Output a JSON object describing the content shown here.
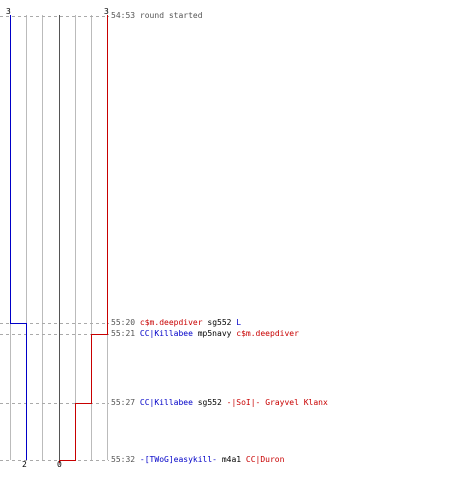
{
  "colors": {
    "team_blue": "#0000c8",
    "team_red": "#c80000",
    "weapon": "#000000",
    "timestamp": "#555555",
    "grid": "#bbbbbb",
    "guide_dashed": "#aaaaaa",
    "center_line": "#555555"
  },
  "scores": {
    "blue_start": "3",
    "red_start": "3",
    "blue_end": "2",
    "red_end": "0"
  },
  "events": [
    {
      "time": "54:53",
      "text": "round started"
    },
    {
      "time": "55:20",
      "killer": "c$m.deepdiver",
      "killer_team": "red",
      "weapon": "sg552",
      "victim": "L",
      "victim_team": "blue"
    },
    {
      "time": "55:21",
      "killer": "CC|Killabee",
      "killer_team": "blue",
      "weapon": "mp5navy",
      "victim": "c$m.deepdiver",
      "victim_team": "red"
    },
    {
      "time": "55:27",
      "killer": "CC|Killabee",
      "killer_team": "blue",
      "weapon": "sg552",
      "victim": "-|SoI|- Grayvel Klanx",
      "victim_team": "red"
    },
    {
      "time": "55:32",
      "killer": "-[TWoG]easykill-",
      "killer_team": "blue",
      "weapon": "m4a1",
      "victim": "CC|Duron",
      "victim_team": "red"
    }
  ]
}
